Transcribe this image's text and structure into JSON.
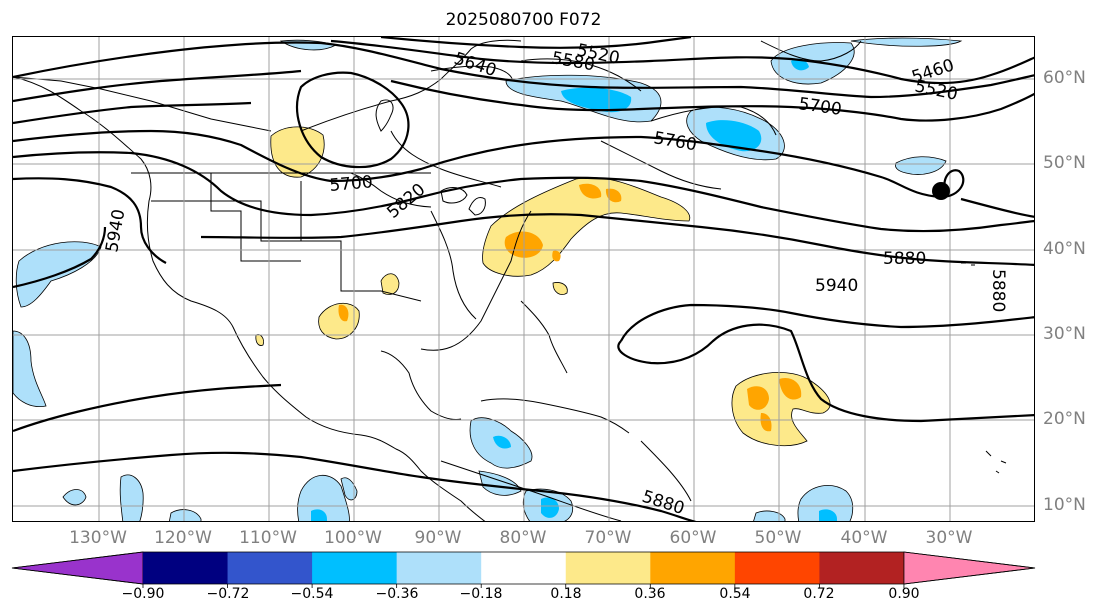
{
  "title": "2025080700 F072",
  "longitude_labels": [
    "130°W",
    "120°W",
    "110°W",
    "100°W",
    "90°W",
    "80°W",
    "70°W",
    "60°W",
    "50°W",
    "40°W",
    "30°W"
  ],
  "latitude_labels": [
    "60°N",
    "50°N",
    "40°N",
    "30°N",
    "20°N",
    "10°N"
  ],
  "contour_labels": [
    "5520",
    "5580",
    "5640",
    "5460",
    "5520",
    "5700",
    "5760",
    "5700",
    "5820",
    "5940",
    "5880",
    "5880",
    "5940",
    "5880"
  ],
  "colorbar": {
    "ticks": [
      "−0.90",
      "−0.72",
      "−0.54",
      "−0.36",
      "−0.18",
      "0.18",
      "0.36",
      "0.54",
      "0.72",
      "0.90"
    ],
    "colors": [
      "#9933cc",
      "#000080",
      "#3355cc",
      "#00bfff",
      "#aee0fa",
      "#ffffff",
      "#fde98a",
      "#ffa500",
      "#ff4500",
      "#b22222",
      "#ff85b0"
    ]
  },
  "colors": {
    "contour": "#000000",
    "grid": "#a0a0a0",
    "axis_label": "#808080",
    "light_blue": "#aee0fa",
    "blue": "#00bfff",
    "yellow": "#fde98a",
    "orange": "#ffa500"
  }
}
